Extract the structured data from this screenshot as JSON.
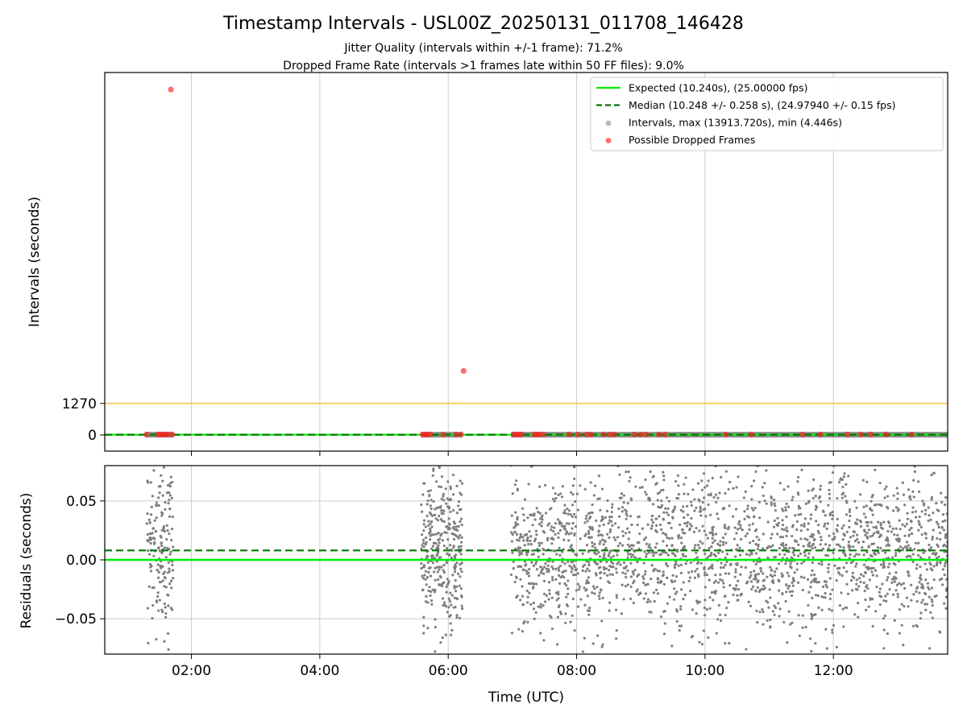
{
  "figure": {
    "title": "Timestamp Intervals - USL00Z_20250131_011708_146428",
    "subtitle_1": "Jitter Quality (intervals within +/-1 frame): 71.2%",
    "subtitle_2": "Dropped Frame Rate (intervals >1 frames late within 50 FF files): 9.0%"
  },
  "colors": {
    "expected": "#00ee00",
    "median": "#007700",
    "intervals": "#7f7f7f",
    "dropped": "#ff2020",
    "threshold": "#f5c242",
    "grid": "#cccccc",
    "axis": "#000000"
  },
  "chart_data": [
    {
      "type": "scatter",
      "panel": "top",
      "ylabel": "Intervals (seconds)",
      "xlabel": "",
      "xlim_hours": [
        0.65,
        13.78
      ],
      "x_ticks": [
        "02:00",
        "04:00",
        "06:00",
        "08:00",
        "10:00",
        "12:00"
      ],
      "x_tick_hours": [
        2,
        4,
        6,
        8,
        10,
        12
      ],
      "ylim": [
        -650,
        14600
      ],
      "y_ticks": [
        0,
        1270
      ],
      "y_tick_labels": [
        "0",
        "1270"
      ],
      "grid": "x-only",
      "legend_position": "top-right",
      "legend": [
        {
          "label": "Expected (10.240s), (25.00000 fps)",
          "kind": "line",
          "color_key": "expected"
        },
        {
          "label": "Median (10.248 +/- 0.258 s), (24.97940 +/- 0.15 fps)",
          "kind": "dashed",
          "color_key": "median"
        },
        {
          "label": "Intervals, max (13913.720s), min (4.446s)",
          "kind": "dot",
          "color_key": "intervals"
        },
        {
          "label": "Possible Dropped Frames",
          "kind": "dot",
          "color_key": "dropped"
        }
      ],
      "expected_interval": 10.24,
      "median_interval": 10.248,
      "threshold_line": 1270,
      "intervals_max": 13913.72,
      "intervals_min": 4.446,
      "interval_segments_hours": [
        [
          1.28,
          1.72
        ],
        [
          5.58,
          6.22
        ],
        [
          6.98,
          13.78
        ]
      ],
      "dropped_frames": [
        {
          "x": 1.68,
          "y": 13913.72
        },
        {
          "x": 6.24,
          "y": 2580
        },
        {
          "x": 1.3,
          "y": 20
        },
        {
          "x": 1.48,
          "y": 20
        },
        {
          "x": 1.52,
          "y": 20
        },
        {
          "x": 1.56,
          "y": 20
        },
        {
          "x": 1.6,
          "y": 20
        },
        {
          "x": 1.64,
          "y": 20
        },
        {
          "x": 1.7,
          "y": 20
        },
        {
          "x": 5.6,
          "y": 20
        },
        {
          "x": 5.64,
          "y": 20
        },
        {
          "x": 5.68,
          "y": 20
        },
        {
          "x": 5.72,
          "y": 20
        },
        {
          "x": 5.92,
          "y": 20
        },
        {
          "x": 6.12,
          "y": 20
        },
        {
          "x": 6.2,
          "y": 20
        },
        {
          "x": 7.02,
          "y": 20
        },
        {
          "x": 7.06,
          "y": 20
        },
        {
          "x": 7.1,
          "y": 20
        },
        {
          "x": 7.14,
          "y": 20
        },
        {
          "x": 7.34,
          "y": 20
        },
        {
          "x": 7.38,
          "y": 20
        },
        {
          "x": 7.42,
          "y": 20
        },
        {
          "x": 7.48,
          "y": 20
        },
        {
          "x": 7.88,
          "y": 20
        },
        {
          "x": 8.02,
          "y": 20
        },
        {
          "x": 8.16,
          "y": 20
        },
        {
          "x": 8.22,
          "y": 20
        },
        {
          "x": 8.42,
          "y": 20
        },
        {
          "x": 8.52,
          "y": 20
        },
        {
          "x": 8.58,
          "y": 20
        },
        {
          "x": 8.9,
          "y": 20
        },
        {
          "x": 9.0,
          "y": 20
        },
        {
          "x": 9.08,
          "y": 20
        },
        {
          "x": 9.28,
          "y": 20
        },
        {
          "x": 9.38,
          "y": 20
        },
        {
          "x": 10.32,
          "y": 20
        },
        {
          "x": 10.72,
          "y": 20
        },
        {
          "x": 11.52,
          "y": 20
        },
        {
          "x": 11.8,
          "y": 20
        },
        {
          "x": 12.22,
          "y": 20
        },
        {
          "x": 12.42,
          "y": 20
        },
        {
          "x": 12.58,
          "y": 20
        },
        {
          "x": 12.82,
          "y": 20
        },
        {
          "x": 13.22,
          "y": 20
        }
      ]
    },
    {
      "type": "scatter",
      "panel": "bottom",
      "ylabel": "Residuals (seconds)",
      "xlabel": "Time (UTC)",
      "xlim_hours": [
        0.65,
        13.78
      ],
      "x_ticks": [
        "02:00",
        "04:00",
        "06:00",
        "08:00",
        "10:00",
        "12:00"
      ],
      "x_tick_hours": [
        2,
        4,
        6,
        8,
        10,
        12
      ],
      "ylim": [
        -0.08,
        0.08
      ],
      "y_ticks": [
        0.05,
        0.0,
        -0.05
      ],
      "y_tick_labels": [
        "0.05",
        "0.00",
        "−0.05"
      ],
      "grid": "both",
      "expected_residual": 0.0,
      "median_residual": 0.008,
      "residual_spread": 0.035,
      "residual_segments_hours": [
        {
          "range": [
            1.3,
            1.72
          ],
          "count": 170
        },
        {
          "range": [
            5.58,
            6.22
          ],
          "count": 330
        },
        {
          "range": [
            6.98,
            13.78
          ],
          "count": 2100
        }
      ]
    }
  ]
}
